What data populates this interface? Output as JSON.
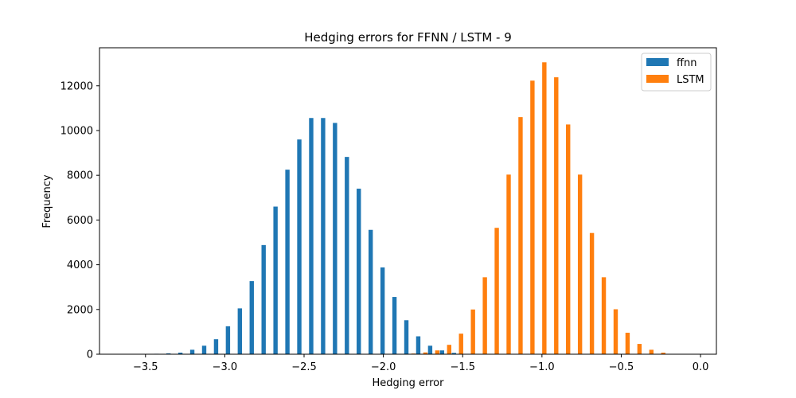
{
  "chart_data": {
    "type": "bar",
    "title": "Hedging errors for FFNN / LSTM - 9",
    "xlabel": "Hedging error",
    "ylabel": "Frequency",
    "xlim": [
      -3.79,
      0.1
    ],
    "ylim": [
      0,
      13700
    ],
    "xticks": [
      -3.5,
      -3.0,
      -2.5,
      -2.0,
      -1.5,
      -1.0,
      -0.5,
      0.0
    ],
    "xtick_labels": [
      "−3.5",
      "−3.0",
      "−2.5",
      "−2.0",
      "−1.5",
      "−1.0",
      "−0.5",
      "0.0"
    ],
    "yticks": [
      0,
      2000,
      4000,
      6000,
      8000,
      10000,
      12000
    ],
    "ytick_labels": [
      "0",
      "2000",
      "4000",
      "6000",
      "8000",
      "10000",
      "12000"
    ],
    "grid": false,
    "legend_position": "top-right",
    "series": [
      {
        "name": "ffnn",
        "color": "#1f77b4",
        "x": [
          -3.655,
          -3.58,
          -3.505,
          -3.43,
          -3.355,
          -3.28,
          -3.205,
          -3.13,
          -3.055,
          -2.98,
          -2.905,
          -2.83,
          -2.755,
          -2.68,
          -2.605,
          -2.53,
          -2.455,
          -2.38,
          -2.305,
          -2.23,
          -2.155,
          -2.08,
          -2.005,
          -1.93,
          -1.855,
          -1.78,
          -1.705,
          -1.63,
          -1.555,
          -1.48
        ],
        "values": [
          2,
          5,
          10,
          20,
          40,
          70,
          200,
          380,
          670,
          1250,
          2050,
          3270,
          4880,
          6600,
          8250,
          9600,
          10560,
          10560,
          10340,
          8820,
          7400,
          5560,
          3880,
          2560,
          1520,
          800,
          380,
          170,
          60,
          10
        ]
      },
      {
        "name": "LSTM",
        "color": "#ff7f0e",
        "x": [
          -1.81,
          -1.735,
          -1.66,
          -1.585,
          -1.51,
          -1.435,
          -1.36,
          -1.285,
          -1.21,
          -1.135,
          -1.06,
          -0.985,
          -0.91,
          -0.835,
          -0.76,
          -0.685,
          -0.61,
          -0.535,
          -0.46,
          -0.385,
          -0.31,
          -0.235
        ],
        "values": [
          30,
          80,
          170,
          420,
          920,
          2000,
          3440,
          5650,
          8030,
          10600,
          12230,
          13050,
          12380,
          10270,
          8030,
          5420,
          3440,
          2010,
          960,
          460,
          200,
          70
        ]
      }
    ]
  }
}
